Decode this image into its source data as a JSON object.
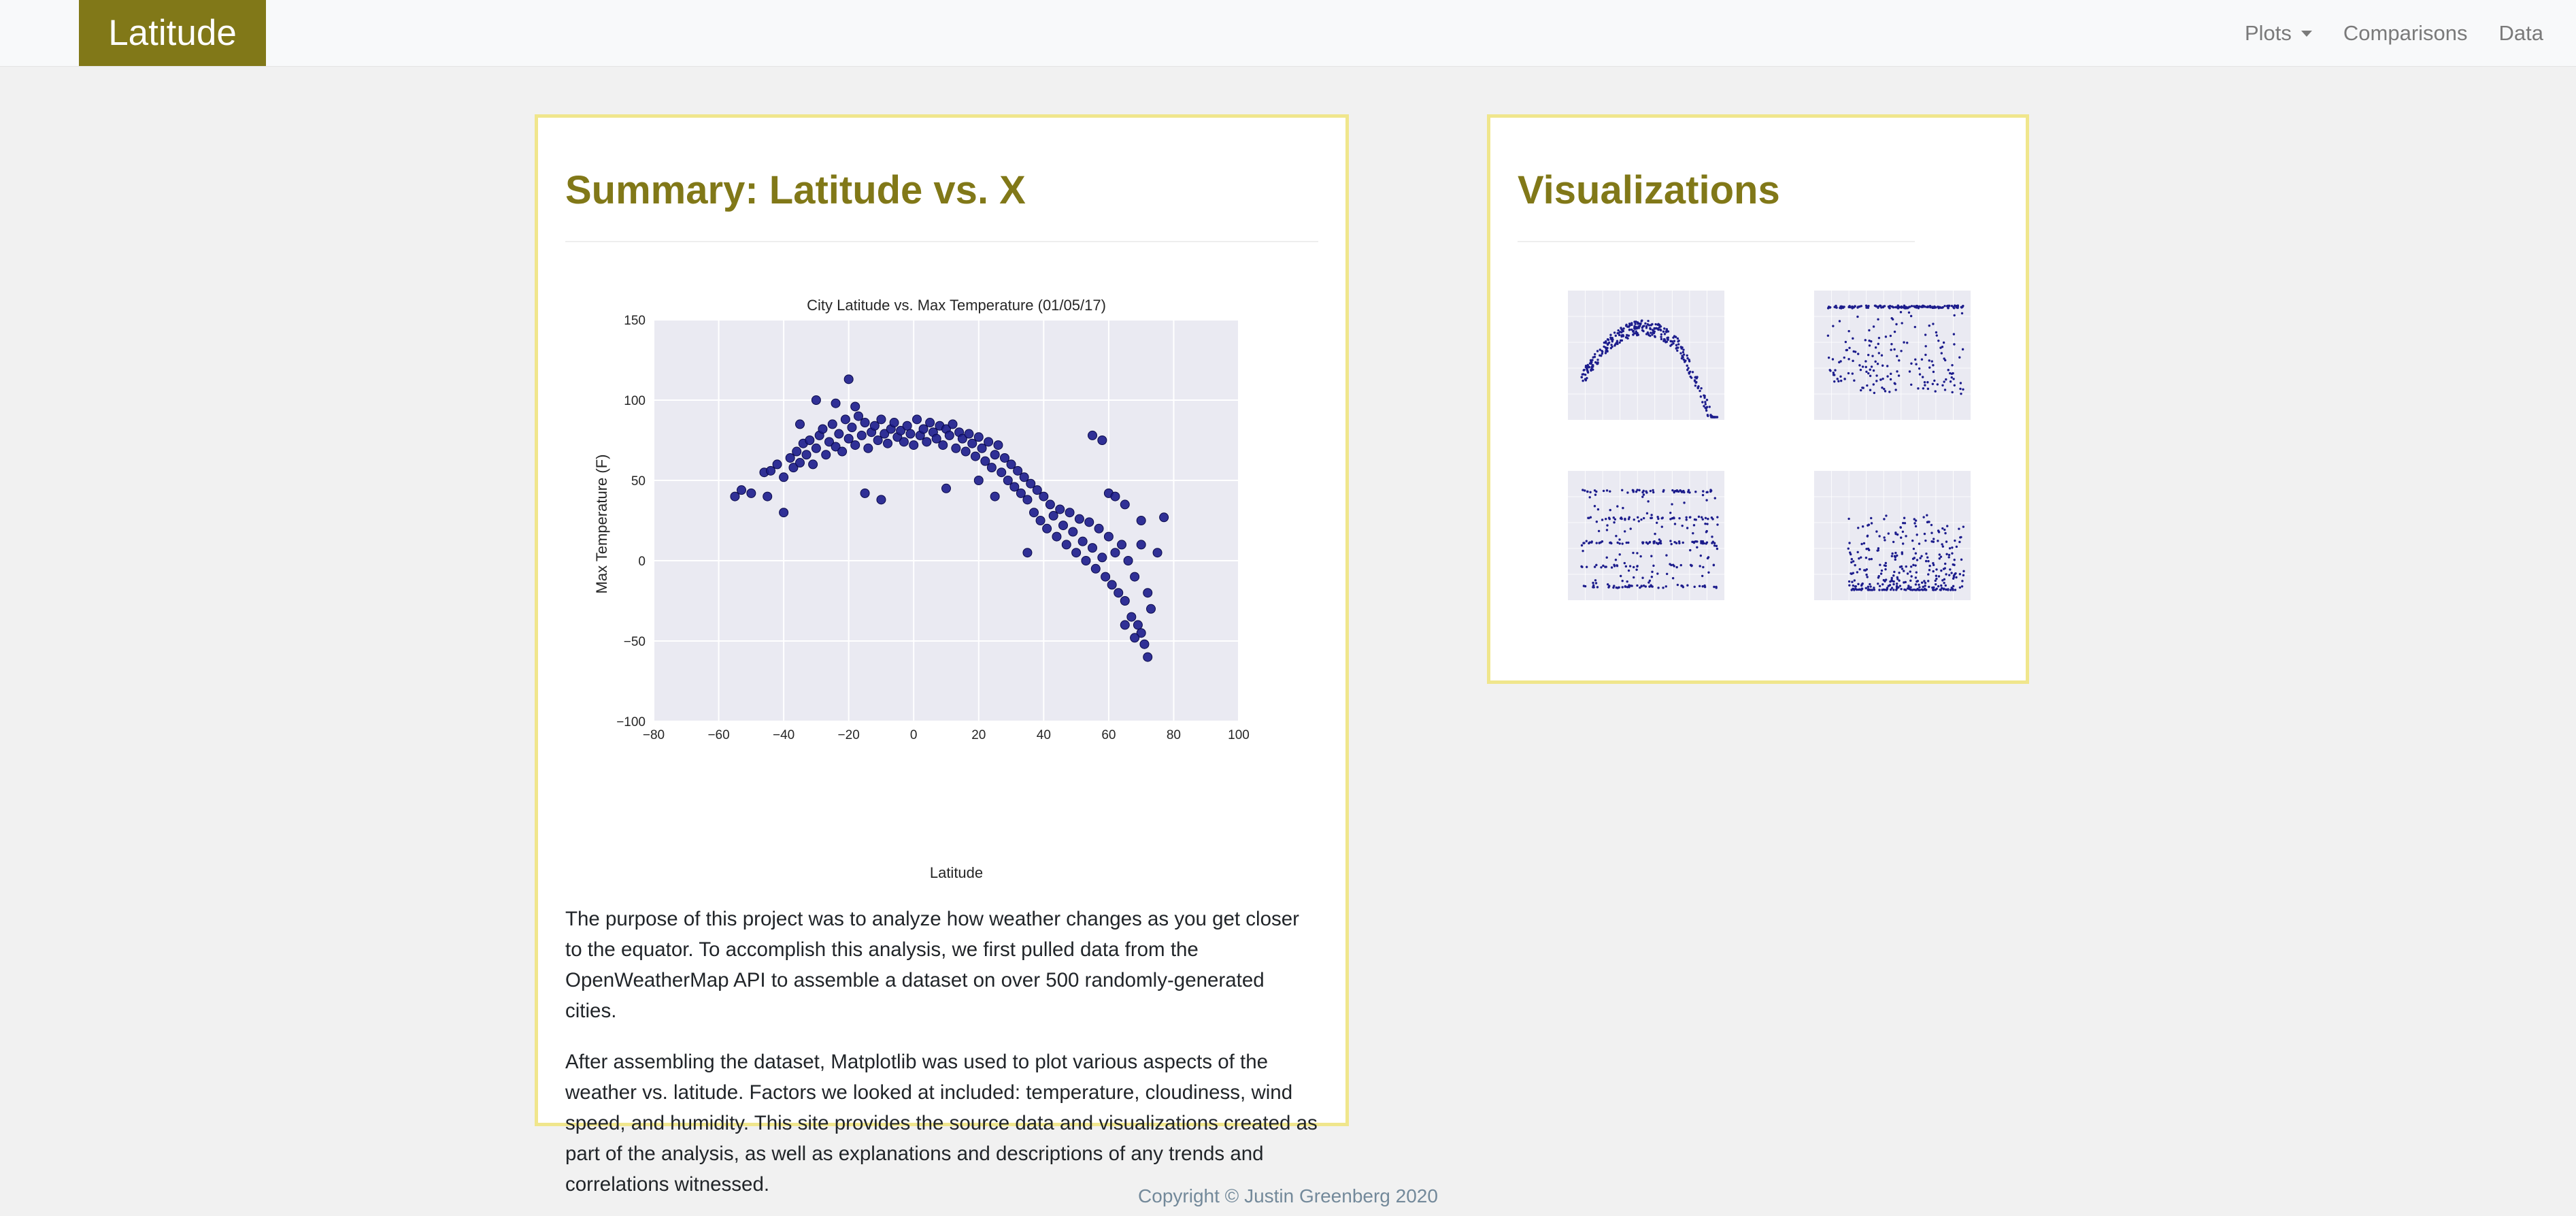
{
  "navbar": {
    "brand": "Latitude",
    "links": [
      {
        "label": "Plots",
        "dropdown": true
      },
      {
        "label": "Comparisons",
        "dropdown": false
      },
      {
        "label": "Data",
        "dropdown": false
      }
    ]
  },
  "summary": {
    "title": "Summary: Latitude vs. X",
    "paragraphs": [
      "The purpose of this project was to analyze how weather changes as you get closer to the equator. To accomplish this analysis, we first pulled data from the OpenWeatherMap API to assemble a dataset on over 500 randomly-generated cities.",
      "After assembling the dataset, Matplotlib was used to plot various aspects of the weather vs. latitude. Factors we looked at included: temperature, cloudiness, wind speed, and humidity. This site provides the source data and visualizations created as part of the analysis, as well as explanations and descriptions of any trends and correlations witnessed."
    ]
  },
  "visualizations": {
    "title": "Visualizations"
  },
  "footer": {
    "text": "Copyright © Justin Greenberg 2020"
  },
  "colors": {
    "accent": "#817818",
    "panel_border": "#f0e68c",
    "marker": "#1c1c8c",
    "plot_bg": "#eaeaf2"
  },
  "chart_data": [
    {
      "type": "scatter",
      "title": "City Latitude vs. Max Temperature (01/05/17)",
      "xlabel": "Latitude",
      "ylabel": "Max Temperature (F)",
      "xlim": [
        -80,
        100
      ],
      "ylim": [
        -100,
        150
      ],
      "xticks": [
        -80,
        -60,
        -40,
        -20,
        0,
        20,
        40,
        60,
        80,
        100
      ],
      "yticks": [
        -100,
        -50,
        0,
        50,
        100,
        150
      ],
      "xtick_labels": [
        "−80",
        "−60",
        "−40",
        "−20",
        "0",
        "20",
        "40",
        "60",
        "80",
        "100"
      ],
      "ytick_labels": [
        "−100",
        "−50",
        "0",
        "50",
        "100",
        "150"
      ],
      "grid": true,
      "points": [
        [
          -55,
          40
        ],
        [
          -53,
          44
        ],
        [
          -50,
          42
        ],
        [
          -46,
          55
        ],
        [
          -45,
          40
        ],
        [
          -44,
          56
        ],
        [
          -42,
          60
        ],
        [
          -40,
          52
        ],
        [
          -38,
          64
        ],
        [
          -37,
          58
        ],
        [
          -36,
          68
        ],
        [
          -35,
          61
        ],
        [
          -34,
          73
        ],
        [
          -33,
          66
        ],
        [
          -32,
          75
        ],
        [
          -31,
          60
        ],
        [
          -30,
          70
        ],
        [
          -29,
          78
        ],
        [
          -28,
          82
        ],
        [
          -27,
          66
        ],
        [
          -26,
          74
        ],
        [
          -25,
          85
        ],
        [
          -24,
          71
        ],
        [
          -23,
          79
        ],
        [
          -22,
          68
        ],
        [
          -21,
          88
        ],
        [
          -20,
          76
        ],
        [
          -20,
          113
        ],
        [
          -19,
          83
        ],
        [
          -18,
          72
        ],
        [
          -17,
          90
        ],
        [
          -16,
          78
        ],
        [
          -15,
          86
        ],
        [
          -14,
          70
        ],
        [
          -13,
          80
        ],
        [
          -12,
          84
        ],
        [
          -11,
          75
        ],
        [
          -10,
          88
        ],
        [
          -9,
          79
        ],
        [
          -8,
          73
        ],
        [
          -7,
          82
        ],
        [
          -6,
          86
        ],
        [
          -5,
          77
        ],
        [
          -4,
          81
        ],
        [
          -3,
          74
        ],
        [
          -2,
          84
        ],
        [
          -1,
          79
        ],
        [
          0,
          72
        ],
        [
          1,
          88
        ],
        [
          2,
          78
        ],
        [
          3,
          82
        ],
        [
          4,
          74
        ],
        [
          5,
          86
        ],
        [
          6,
          80
        ],
        [
          7,
          76
        ],
        [
          8,
          84
        ],
        [
          9,
          72
        ],
        [
          10,
          82
        ],
        [
          11,
          78
        ],
        [
          12,
          85
        ],
        [
          13,
          70
        ],
        [
          14,
          80
        ],
        [
          15,
          76
        ],
        [
          16,
          68
        ],
        [
          17,
          79
        ],
        [
          18,
          73
        ],
        [
          19,
          65
        ],
        [
          20,
          77
        ],
        [
          21,
          70
        ],
        [
          22,
          62
        ],
        [
          23,
          74
        ],
        [
          24,
          58
        ],
        [
          25,
          66
        ],
        [
          26,
          72
        ],
        [
          27,
          55
        ],
        [
          28,
          64
        ],
        [
          29,
          50
        ],
        [
          30,
          60
        ],
        [
          31,
          46
        ],
        [
          32,
          56
        ],
        [
          33,
          42
        ],
        [
          34,
          52
        ],
        [
          35,
          38
        ],
        [
          36,
          48
        ],
        [
          37,
          30
        ],
        [
          38,
          44
        ],
        [
          39,
          25
        ],
        [
          40,
          40
        ],
        [
          41,
          20
        ],
        [
          42,
          35
        ],
        [
          43,
          28
        ],
        [
          44,
          15
        ],
        [
          45,
          32
        ],
        [
          46,
          22
        ],
        [
          47,
          10
        ],
        [
          48,
          30
        ],
        [
          49,
          18
        ],
        [
          50,
          5
        ],
        [
          51,
          26
        ],
        [
          52,
          12
        ],
        [
          53,
          0
        ],
        [
          54,
          24
        ],
        [
          55,
          8
        ],
        [
          56,
          -5
        ],
        [
          57,
          20
        ],
        [
          58,
          2
        ],
        [
          59,
          -10
        ],
        [
          60,
          15
        ],
        [
          61,
          -15
        ],
        [
          62,
          5
        ],
        [
          63,
          -20
        ],
        [
          64,
          10
        ],
        [
          65,
          -25
        ],
        [
          66,
          0
        ],
        [
          67,
          -35
        ],
        [
          68,
          -10
        ],
        [
          69,
          -40
        ],
        [
          70,
          -45
        ],
        [
          71,
          -52
        ],
        [
          72,
          -60
        ],
        [
          -30,
          100
        ],
        [
          -24,
          98
        ],
        [
          -18,
          96
        ],
        [
          -40,
          30
        ],
        [
          -35,
          85
        ],
        [
          -15,
          42
        ],
        [
          -10,
          38
        ],
        [
          10,
          45
        ],
        [
          20,
          50
        ],
        [
          25,
          40
        ],
        [
          35,
          5
        ],
        [
          55,
          78
        ],
        [
          58,
          75
        ],
        [
          60,
          42
        ],
        [
          62,
          40
        ],
        [
          65,
          35
        ],
        [
          70,
          25
        ],
        [
          75,
          5
        ],
        [
          77,
          27
        ],
        [
          73,
          -30
        ],
        [
          68,
          -48
        ],
        [
          65,
          -40
        ],
        [
          70,
          10
        ],
        [
          72,
          -20
        ]
      ]
    }
  ]
}
